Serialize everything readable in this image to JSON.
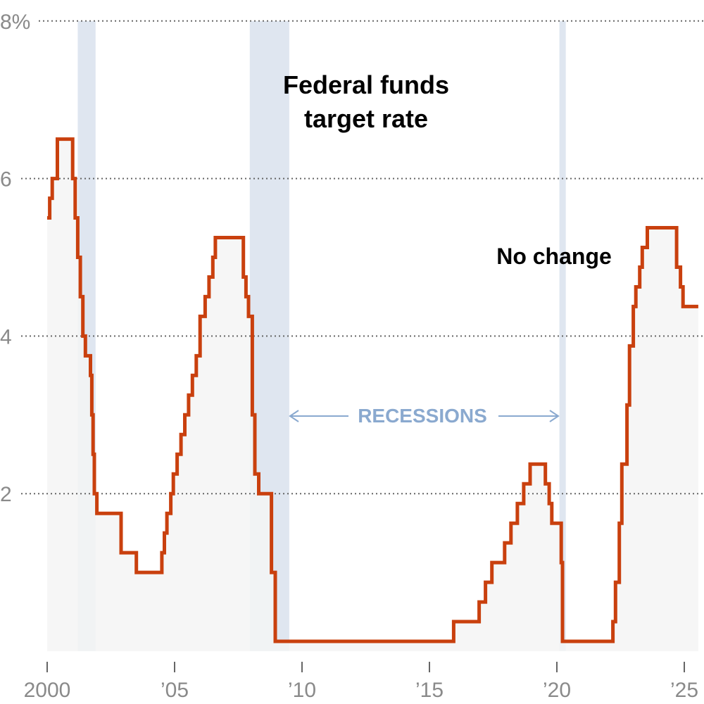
{
  "chart_data": {
    "type": "area",
    "title": "Federal funds target rate",
    "title_lines": [
      "Federal funds",
      "target rate"
    ],
    "xlabel": "",
    "ylabel": "",
    "xlim": [
      2000,
      2025.6
    ],
    "ylim": [
      0,
      8
    ],
    "y_ticks": [
      {
        "value": 8,
        "label": "8%"
      },
      {
        "value": 6,
        "label": "6"
      },
      {
        "value": 4,
        "label": "4"
      },
      {
        "value": 2,
        "label": "2"
      }
    ],
    "x_ticks": [
      {
        "value": 2000,
        "label": "2000"
      },
      {
        "value": 2005,
        "label": "’05"
      },
      {
        "value": 2010,
        "label": "’10"
      },
      {
        "value": 2015,
        "label": "’15"
      },
      {
        "value": 2020,
        "label": "’20"
      },
      {
        "value": 2025,
        "label": "’25"
      }
    ],
    "grid": true,
    "colors": {
      "line": "#c9400e",
      "fill": "#f4f4f4",
      "recession": "#dfe6f0",
      "recession_text": "#8aa9cf",
      "grid": "#666666",
      "tick_text": "#8a8a8a"
    },
    "recessions": [
      {
        "start": 2001.2,
        "end": 2001.9
      },
      {
        "start": 2007.95,
        "end": 2009.5
      },
      {
        "start": 2020.1,
        "end": 2020.35
      }
    ],
    "recessions_label": "RECESSIONS",
    "annotation": "No change",
    "series": [
      {
        "values_step": [
          [
            2000.0,
            5.5
          ],
          [
            2000.1,
            5.75
          ],
          [
            2000.2,
            6.0
          ],
          [
            2000.4,
            6.5
          ],
          [
            2001.0,
            6.0
          ],
          [
            2001.1,
            5.5
          ],
          [
            2001.2,
            5.0
          ],
          [
            2001.3,
            4.5
          ],
          [
            2001.4,
            4.0
          ],
          [
            2001.5,
            3.75
          ],
          [
            2001.7,
            3.5
          ],
          [
            2001.75,
            3.0
          ],
          [
            2001.8,
            2.5
          ],
          [
            2001.85,
            2.0
          ],
          [
            2001.95,
            1.75
          ],
          [
            2002.9,
            1.25
          ],
          [
            2003.5,
            1.0
          ],
          [
            2004.5,
            1.25
          ],
          [
            2004.6,
            1.5
          ],
          [
            2004.7,
            1.75
          ],
          [
            2004.85,
            2.0
          ],
          [
            2004.95,
            2.25
          ],
          [
            2005.1,
            2.5
          ],
          [
            2005.25,
            2.75
          ],
          [
            2005.4,
            3.0
          ],
          [
            2005.55,
            3.25
          ],
          [
            2005.7,
            3.5
          ],
          [
            2005.85,
            3.75
          ],
          [
            2006.0,
            4.25
          ],
          [
            2006.2,
            4.5
          ],
          [
            2006.35,
            4.75
          ],
          [
            2006.5,
            5.0
          ],
          [
            2006.6,
            5.25
          ],
          [
            2007.7,
            4.75
          ],
          [
            2007.8,
            4.5
          ],
          [
            2007.9,
            4.25
          ],
          [
            2008.05,
            3.0
          ],
          [
            2008.15,
            2.25
          ],
          [
            2008.3,
            2.0
          ],
          [
            2008.8,
            1.0
          ],
          [
            2008.95,
            0.125
          ],
          [
            2015.95,
            0.375
          ],
          [
            2016.95,
            0.625
          ],
          [
            2017.2,
            0.875
          ],
          [
            2017.45,
            1.125
          ],
          [
            2017.95,
            1.375
          ],
          [
            2018.2,
            1.625
          ],
          [
            2018.45,
            1.875
          ],
          [
            2018.7,
            2.125
          ],
          [
            2018.95,
            2.375
          ],
          [
            2019.55,
            2.125
          ],
          [
            2019.7,
            1.875
          ],
          [
            2019.8,
            1.625
          ],
          [
            2020.17,
            1.125
          ],
          [
            2020.22,
            0.125
          ],
          [
            2022.2,
            0.375
          ],
          [
            2022.3,
            0.875
          ],
          [
            2022.45,
            1.625
          ],
          [
            2022.55,
            2.375
          ],
          [
            2022.75,
            3.125
          ],
          [
            2022.85,
            3.875
          ],
          [
            2023.0,
            4.375
          ],
          [
            2023.1,
            4.625
          ],
          [
            2023.25,
            4.875
          ],
          [
            2023.35,
            5.125
          ],
          [
            2023.55,
            5.375
          ],
          [
            2024.7,
            4.875
          ],
          [
            2024.85,
            4.625
          ],
          [
            2024.95,
            4.375
          ],
          [
            2025.55,
            4.375
          ]
        ]
      }
    ]
  }
}
